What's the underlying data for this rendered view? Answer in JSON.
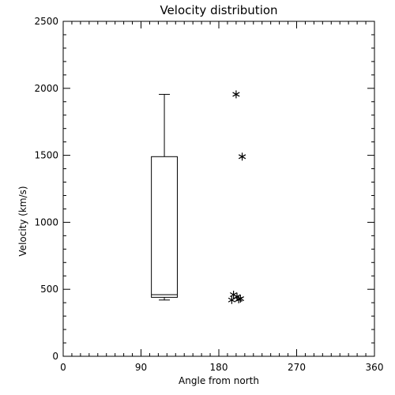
{
  "chart_data": {
    "type": "box",
    "title": "Velocity distribution",
    "xlabel": "Angle from north",
    "ylabel": "Velocity (km/s)",
    "xlim": [
      0,
      360
    ],
    "ylim": [
      0,
      2500
    ],
    "x_ticks": [
      0,
      90,
      180,
      270,
      360
    ],
    "y_ticks": [
      0,
      500,
      1000,
      1500,
      2000,
      2500
    ],
    "grid": false,
    "box": {
      "x_range": [
        102,
        132
      ],
      "whisker_low": 420,
      "q1": 440,
      "median": 460,
      "q3": 1490,
      "whisker_high": 1955
    },
    "points": [
      {
        "x": 200,
        "y": 1955
      },
      {
        "x": 207,
        "y": 1490
      },
      {
        "x": 197,
        "y": 460
      },
      {
        "x": 201,
        "y": 445
      },
      {
        "x": 205,
        "y": 430
      },
      {
        "x": 195,
        "y": 420
      },
      {
        "x": 203,
        "y": 425
      }
    ],
    "marker": "asterisk",
    "color": "#000000"
  }
}
